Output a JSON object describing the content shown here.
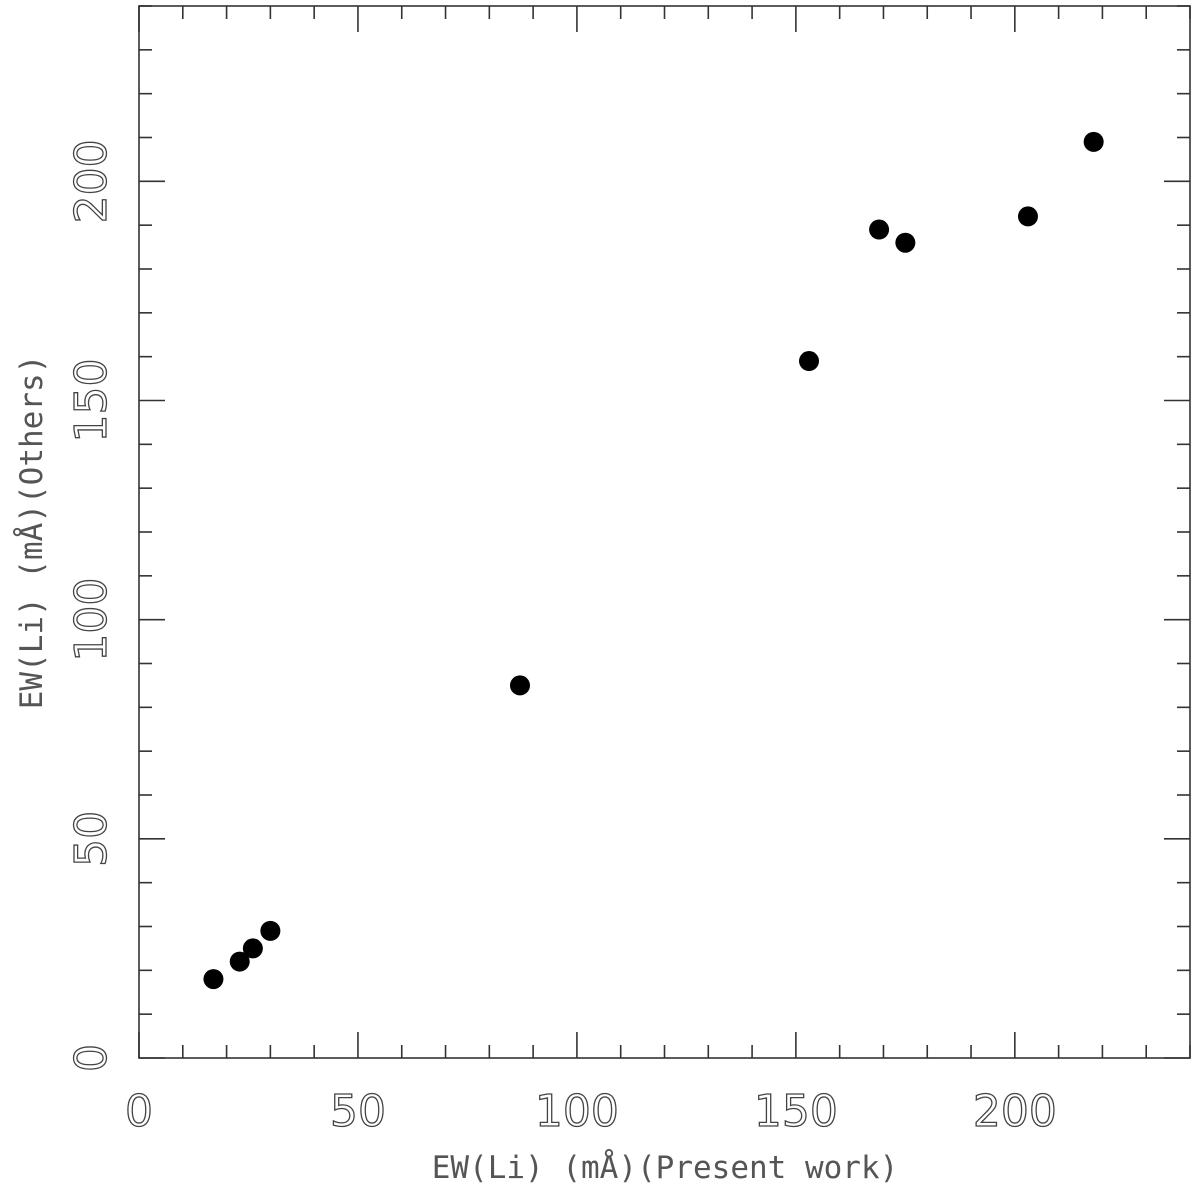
{
  "chart_data": {
    "type": "scatter",
    "title": "",
    "xlabel": "EW(Li) (mÅ)(Present work)",
    "ylabel": "EW(Li) (mÅ)(Others)",
    "xlim": [
      0,
      240
    ],
    "ylim": [
      0,
      240
    ],
    "x_major_ticks": [
      0,
      50,
      100,
      150,
      200
    ],
    "y_major_ticks": [
      0,
      50,
      100,
      150,
      200
    ],
    "x_tick_labels": [
      "0",
      "50",
      "100",
      "150",
      "200"
    ],
    "y_tick_labels": [
      "0",
      "50",
      "100",
      "150",
      "200"
    ],
    "minor_tick_step": 10,
    "grid": false,
    "legend": "none",
    "marker_color": "#000000",
    "points": [
      {
        "x": 17,
        "y": 18
      },
      {
        "x": 23,
        "y": 22
      },
      {
        "x": 26,
        "y": 25
      },
      {
        "x": 30,
        "y": 29
      },
      {
        "x": 87,
        "y": 85
      },
      {
        "x": 153,
        "y": 159
      },
      {
        "x": 169,
        "y": 189
      },
      {
        "x": 175,
        "y": 186
      },
      {
        "x": 203,
        "y": 192
      },
      {
        "x": 218,
        "y": 209
      }
    ]
  }
}
